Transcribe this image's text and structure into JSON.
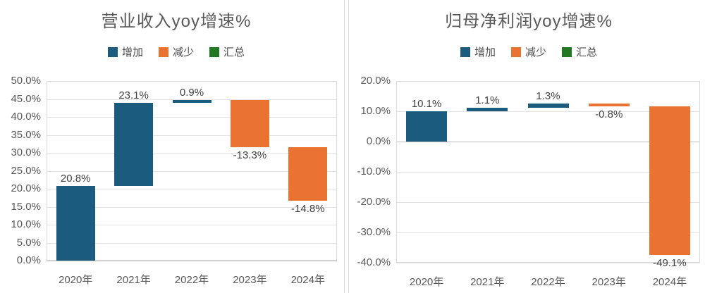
{
  "palette": {
    "increase": "#1a5b7e",
    "decrease": "#eb7331",
    "total": "#217821",
    "grid_line": "#e3e3e3",
    "zero_line": "#bfbfbf",
    "axis_text": "#595959",
    "label_text": "#404040",
    "divider": "#d9d9d9"
  },
  "chart_data": [
    {
      "type": "bar",
      "subtype": "waterfall",
      "title": "营业收入yoy增速%",
      "categories": [
        "2020年",
        "2021年",
        "2022年",
        "2023年",
        "2024年"
      ],
      "values": [
        20.8,
        23.1,
        0.9,
        -13.3,
        -14.8
      ],
      "bar_labels": [
        "20.8%",
        "23.1%",
        "0.9%",
        "-13.3%",
        "-14.8%"
      ],
      "cumulative": [
        20.8,
        43.9,
        44.8,
        31.5,
        16.7
      ],
      "ylim": [
        0,
        50
      ],
      "ytick_step": 5,
      "ytick_labels": [
        "50.0%",
        "45.0%",
        "40.0%",
        "35.0%",
        "30.0%",
        "25.0%",
        "20.0%",
        "15.0%",
        "10.0%",
        "5.0%",
        "0.0%"
      ],
      "xlabel": "",
      "ylabel": "",
      "grid": true,
      "legend_position": "top",
      "legend": [
        {
          "label": "增加",
          "color": "#1a5b7e"
        },
        {
          "label": "减少",
          "color": "#eb7331"
        },
        {
          "label": "汇总",
          "color": "#217821"
        }
      ]
    },
    {
      "type": "bar",
      "subtype": "waterfall",
      "title": "归母净利润yoy增速%",
      "categories": [
        "2020年",
        "2021年",
        "2022年",
        "2023年",
        "2024年"
      ],
      "values": [
        10.1,
        1.1,
        1.3,
        -0.8,
        -49.1
      ],
      "bar_labels": [
        "10.1%",
        "1.1%",
        "1.3%",
        "-0.8%",
        "-49.1%"
      ],
      "cumulative": [
        10.1,
        11.2,
        12.5,
        11.7,
        -37.4
      ],
      "ylim": [
        -40,
        20
      ],
      "ytick_step": 10,
      "ytick_labels": [
        "20.0%",
        "10.0%",
        "0.0%",
        "-10.0%",
        "-20.0%",
        "-30.0%",
        "-40.0%"
      ],
      "xlabel": "",
      "ylabel": "",
      "grid": true,
      "legend_position": "top",
      "legend": [
        {
          "label": "增加",
          "color": "#1a5b7e"
        },
        {
          "label": "减少",
          "color": "#eb7331"
        },
        {
          "label": "汇总",
          "color": "#217821"
        }
      ]
    }
  ]
}
